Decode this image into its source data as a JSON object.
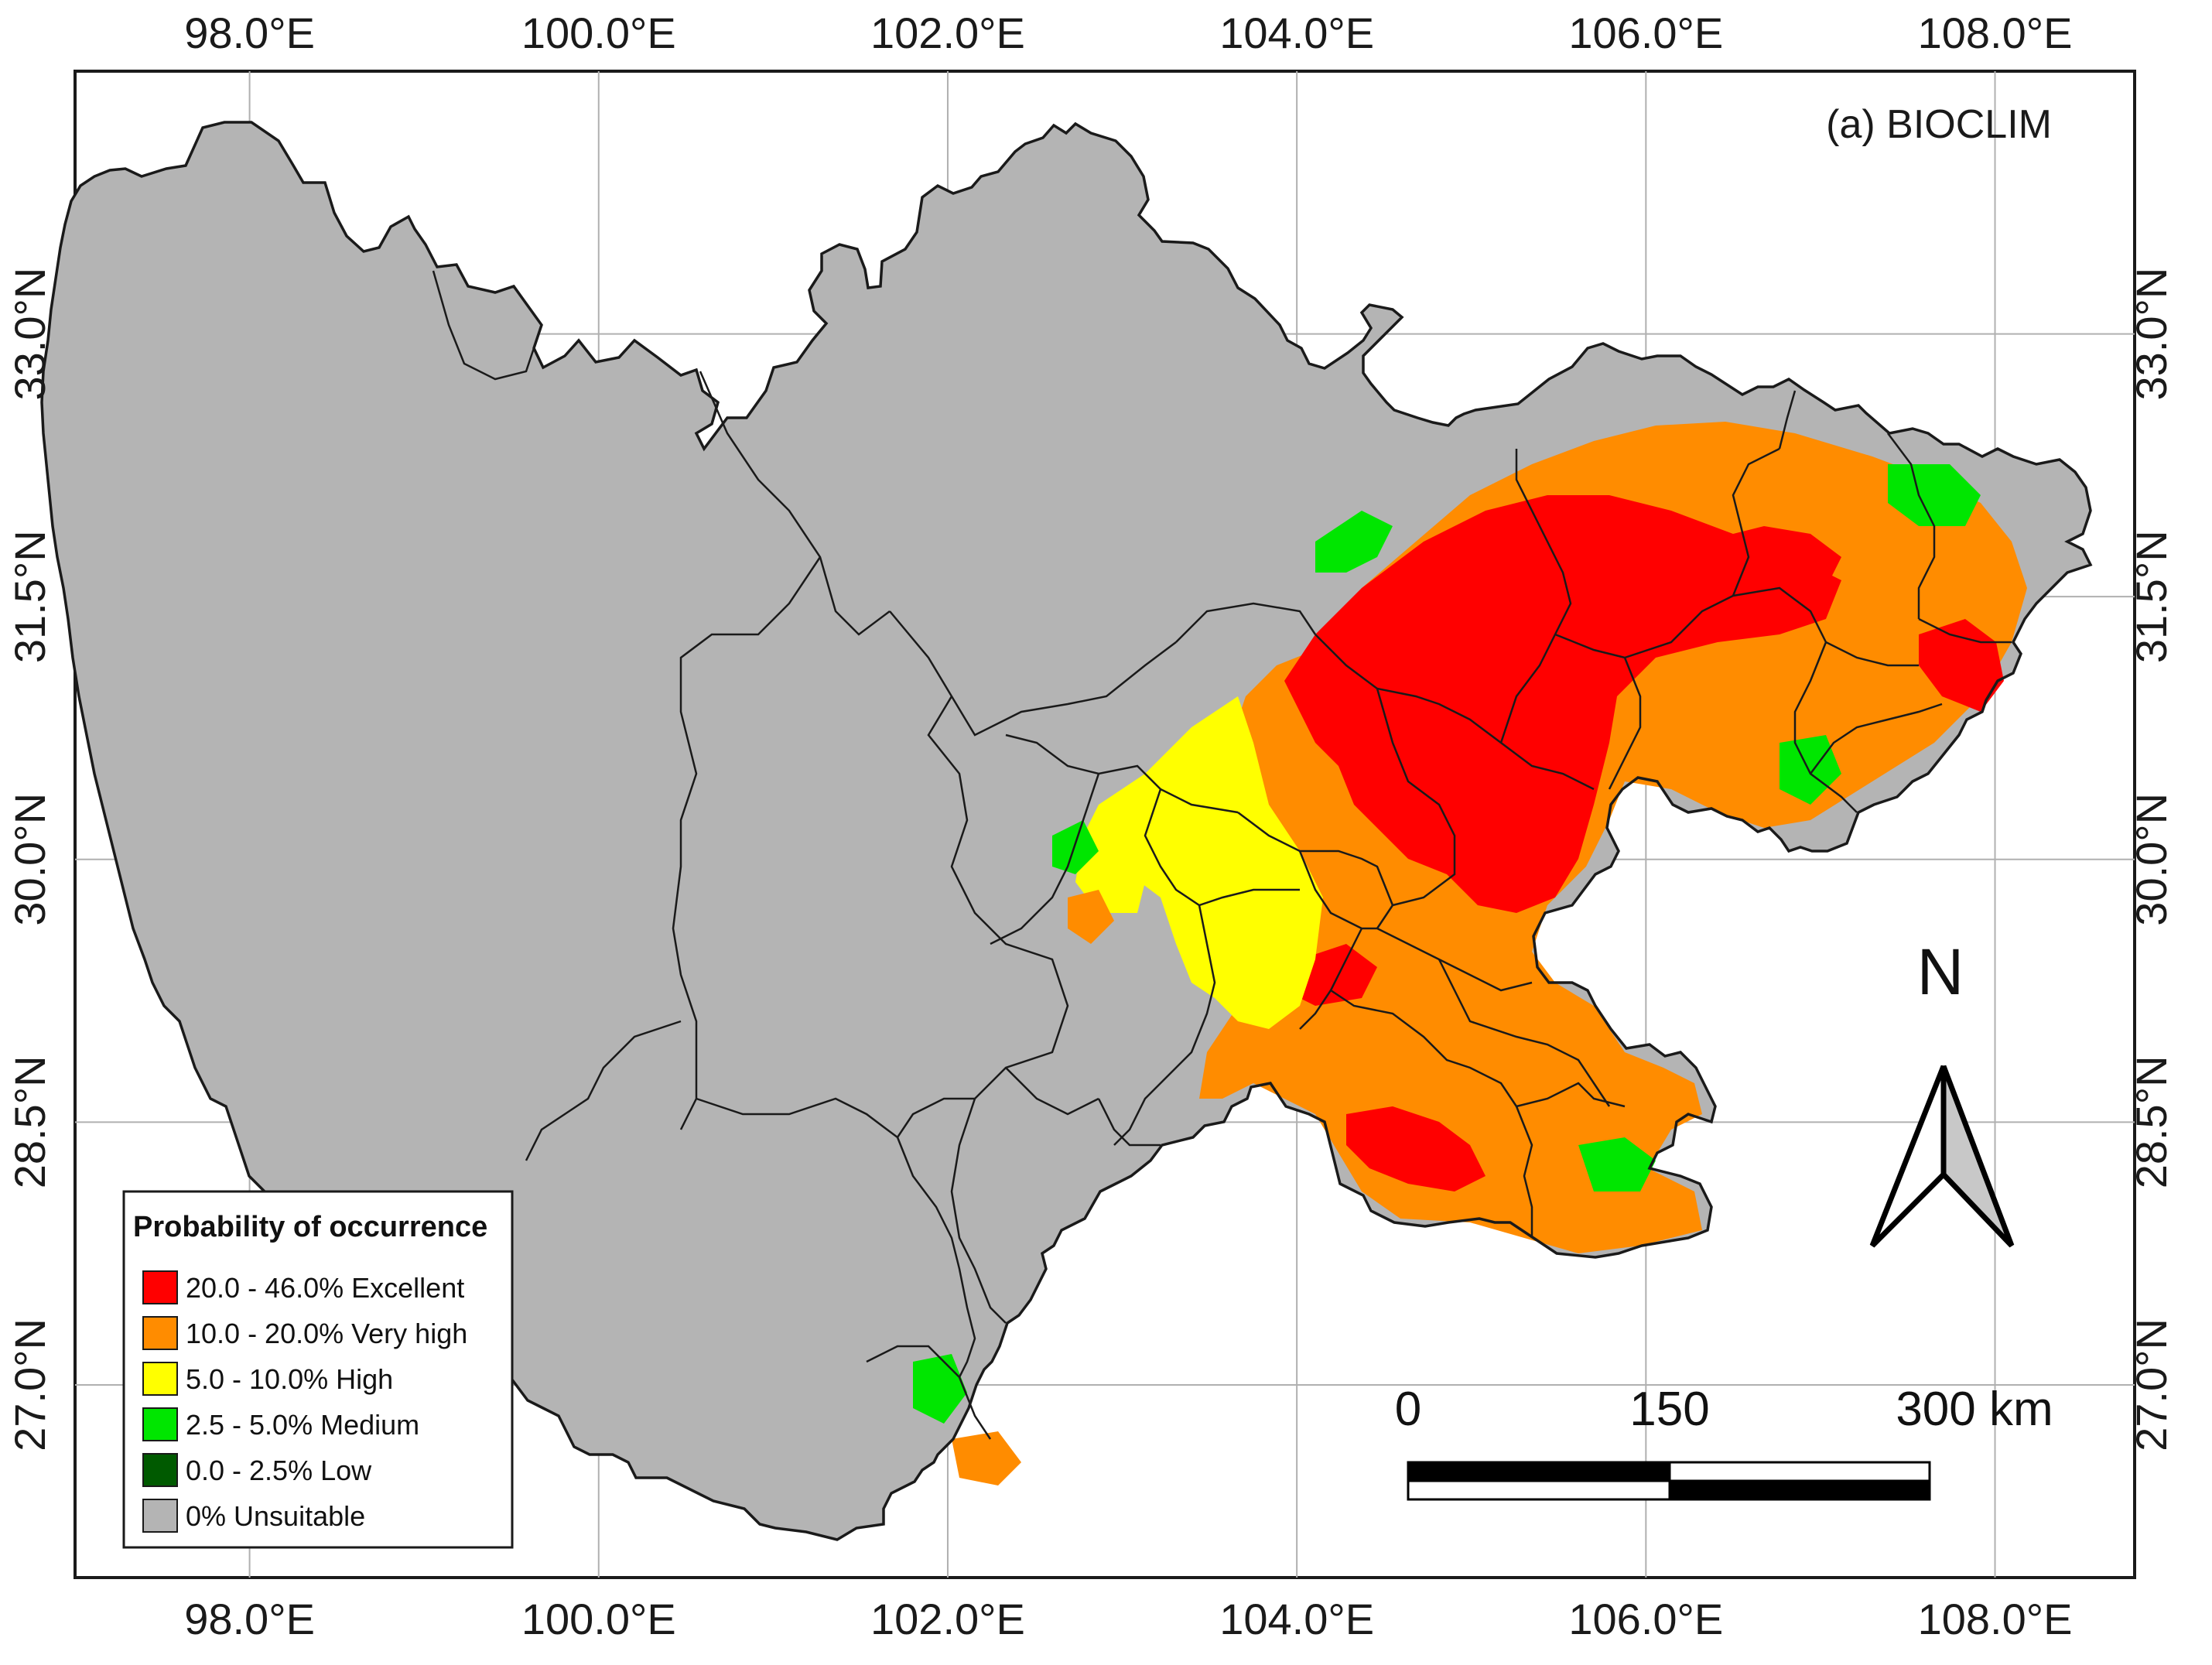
{
  "map": {
    "title": "(a) BIOCLIM",
    "x_ticks": [
      "98.0°E",
      "100.0°E",
      "102.0°E",
      "104.0°E",
      "106.0°E",
      "108.0°E"
    ],
    "y_ticks": [
      "33.0°N",
      "31.5°N",
      "30.0°N",
      "28.5°N",
      "27.0°N"
    ],
    "lon_range": [
      97.0,
      108.8
    ],
    "lat_range": [
      25.9,
      34.5
    ]
  },
  "legend": {
    "title": "Probability of occurrence",
    "items": [
      {
        "label": "20.0 - 46.0% Excellent",
        "color": "#ff0000"
      },
      {
        "label": "10.0 - 20.0% Very high",
        "color": "#ff8c00"
      },
      {
        "label": "5.0 - 10.0% High",
        "color": "#ffff00"
      },
      {
        "label": "2.5 - 5.0% Medium",
        "color": "#00e600"
      },
      {
        "label": "0.0 - 2.5% Low",
        "color": "#005a00"
      },
      {
        "label": "0% Unsuitable",
        "color": "#b4b4b4"
      }
    ]
  },
  "scale_bar": {
    "labels": [
      "0",
      "150",
      "300 km"
    ]
  },
  "north_arrow": {
    "label": "N"
  }
}
